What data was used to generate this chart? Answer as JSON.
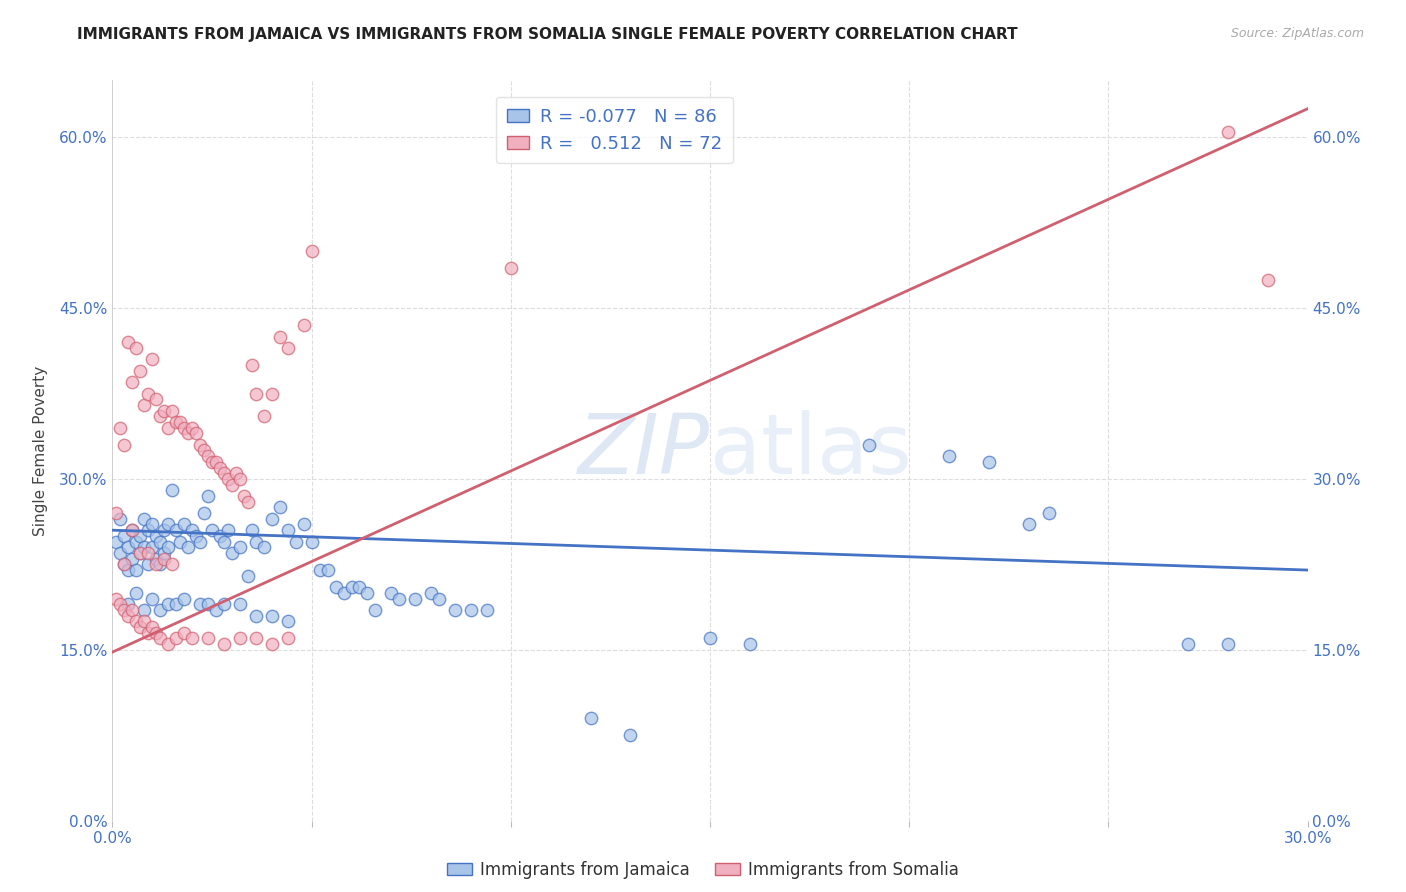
{
  "title": "IMMIGRANTS FROM JAMAICA VS IMMIGRANTS FROM SOMALIA SINGLE FEMALE POVERTY CORRELATION CHART",
  "source": "Source: ZipAtlas.com",
  "xlim": [
    0.0,
    0.3
  ],
  "ylim": [
    0.0,
    0.65
  ],
  "jamaica_color": "#a8c4e8",
  "somalia_color": "#f0b0c0",
  "jamaica_line_color": "#4472c4",
  "somalia_line_color": "#d06070",
  "jamaica_R": -0.077,
  "jamaica_N": 86,
  "somalia_R": 0.512,
  "somalia_N": 72,
  "watermark": "ZIPatlas",
  "jamaica_line": {
    "x0": 0.0,
    "y0": 0.255,
    "x1": 0.3,
    "y1": 0.22
  },
  "somalia_line": {
    "x0": 0.0,
    "y0": 0.148,
    "x1": 0.3,
    "y1": 0.625
  },
  "jamaica_scatter": [
    [
      0.001,
      0.245
    ],
    [
      0.002,
      0.235
    ],
    [
      0.002,
      0.265
    ],
    [
      0.003,
      0.25
    ],
    [
      0.003,
      0.225
    ],
    [
      0.004,
      0.24
    ],
    [
      0.004,
      0.22
    ],
    [
      0.005,
      0.255
    ],
    [
      0.005,
      0.23
    ],
    [
      0.006,
      0.245
    ],
    [
      0.006,
      0.22
    ],
    [
      0.007,
      0.25
    ],
    [
      0.007,
      0.235
    ],
    [
      0.008,
      0.265
    ],
    [
      0.008,
      0.24
    ],
    [
      0.009,
      0.255
    ],
    [
      0.009,
      0.225
    ],
    [
      0.01,
      0.26
    ],
    [
      0.01,
      0.24
    ],
    [
      0.011,
      0.25
    ],
    [
      0.011,
      0.23
    ],
    [
      0.012,
      0.245
    ],
    [
      0.012,
      0.225
    ],
    [
      0.013,
      0.255
    ],
    [
      0.013,
      0.235
    ],
    [
      0.014,
      0.26
    ],
    [
      0.014,
      0.24
    ],
    [
      0.015,
      0.29
    ],
    [
      0.016,
      0.255
    ],
    [
      0.017,
      0.245
    ],
    [
      0.018,
      0.26
    ],
    [
      0.019,
      0.24
    ],
    [
      0.02,
      0.255
    ],
    [
      0.021,
      0.25
    ],
    [
      0.022,
      0.245
    ],
    [
      0.023,
      0.27
    ],
    [
      0.024,
      0.285
    ],
    [
      0.025,
      0.255
    ],
    [
      0.027,
      0.25
    ],
    [
      0.028,
      0.245
    ],
    [
      0.029,
      0.255
    ],
    [
      0.03,
      0.235
    ],
    [
      0.032,
      0.24
    ],
    [
      0.034,
      0.215
    ],
    [
      0.035,
      0.255
    ],
    [
      0.036,
      0.245
    ],
    [
      0.038,
      0.24
    ],
    [
      0.04,
      0.265
    ],
    [
      0.042,
      0.275
    ],
    [
      0.044,
      0.255
    ],
    [
      0.046,
      0.245
    ],
    [
      0.048,
      0.26
    ],
    [
      0.05,
      0.245
    ],
    [
      0.052,
      0.22
    ],
    [
      0.054,
      0.22
    ],
    [
      0.056,
      0.205
    ],
    [
      0.058,
      0.2
    ],
    [
      0.06,
      0.205
    ],
    [
      0.062,
      0.205
    ],
    [
      0.064,
      0.2
    ],
    [
      0.066,
      0.185
    ],
    [
      0.07,
      0.2
    ],
    [
      0.072,
      0.195
    ],
    [
      0.076,
      0.195
    ],
    [
      0.08,
      0.2
    ],
    [
      0.082,
      0.195
    ],
    [
      0.086,
      0.185
    ],
    [
      0.09,
      0.185
    ],
    [
      0.094,
      0.185
    ],
    [
      0.004,
      0.19
    ],
    [
      0.006,
      0.2
    ],
    [
      0.008,
      0.185
    ],
    [
      0.01,
      0.195
    ],
    [
      0.012,
      0.185
    ],
    [
      0.014,
      0.19
    ],
    [
      0.016,
      0.19
    ],
    [
      0.018,
      0.195
    ],
    [
      0.022,
      0.19
    ],
    [
      0.024,
      0.19
    ],
    [
      0.026,
      0.185
    ],
    [
      0.028,
      0.19
    ],
    [
      0.032,
      0.19
    ],
    [
      0.036,
      0.18
    ],
    [
      0.04,
      0.18
    ],
    [
      0.044,
      0.175
    ],
    [
      0.12,
      0.09
    ],
    [
      0.13,
      0.075
    ],
    [
      0.15,
      0.16
    ],
    [
      0.16,
      0.155
    ],
    [
      0.19,
      0.33
    ],
    [
      0.21,
      0.32
    ],
    [
      0.22,
      0.315
    ],
    [
      0.23,
      0.26
    ],
    [
      0.235,
      0.27
    ],
    [
      0.27,
      0.155
    ],
    [
      0.28,
      0.155
    ]
  ],
  "somalia_scatter": [
    [
      0.001,
      0.27
    ],
    [
      0.002,
      0.345
    ],
    [
      0.003,
      0.33
    ],
    [
      0.004,
      0.42
    ],
    [
      0.005,
      0.385
    ],
    [
      0.006,
      0.415
    ],
    [
      0.007,
      0.395
    ],
    [
      0.008,
      0.365
    ],
    [
      0.009,
      0.375
    ],
    [
      0.01,
      0.405
    ],
    [
      0.011,
      0.37
    ],
    [
      0.012,
      0.355
    ],
    [
      0.013,
      0.36
    ],
    [
      0.014,
      0.345
    ],
    [
      0.015,
      0.36
    ],
    [
      0.016,
      0.35
    ],
    [
      0.017,
      0.35
    ],
    [
      0.018,
      0.345
    ],
    [
      0.019,
      0.34
    ],
    [
      0.02,
      0.345
    ],
    [
      0.021,
      0.34
    ],
    [
      0.022,
      0.33
    ],
    [
      0.023,
      0.325
    ],
    [
      0.024,
      0.32
    ],
    [
      0.025,
      0.315
    ],
    [
      0.026,
      0.315
    ],
    [
      0.027,
      0.31
    ],
    [
      0.028,
      0.305
    ],
    [
      0.029,
      0.3
    ],
    [
      0.03,
      0.295
    ],
    [
      0.031,
      0.305
    ],
    [
      0.032,
      0.3
    ],
    [
      0.033,
      0.285
    ],
    [
      0.034,
      0.28
    ],
    [
      0.035,
      0.4
    ],
    [
      0.036,
      0.375
    ],
    [
      0.038,
      0.355
    ],
    [
      0.04,
      0.375
    ],
    [
      0.042,
      0.425
    ],
    [
      0.044,
      0.415
    ],
    [
      0.048,
      0.435
    ],
    [
      0.05,
      0.5
    ],
    [
      0.001,
      0.195
    ],
    [
      0.002,
      0.19
    ],
    [
      0.003,
      0.185
    ],
    [
      0.004,
      0.18
    ],
    [
      0.005,
      0.185
    ],
    [
      0.006,
      0.175
    ],
    [
      0.007,
      0.17
    ],
    [
      0.008,
      0.175
    ],
    [
      0.009,
      0.165
    ],
    [
      0.01,
      0.17
    ],
    [
      0.011,
      0.165
    ],
    [
      0.012,
      0.16
    ],
    [
      0.014,
      0.155
    ],
    [
      0.016,
      0.16
    ],
    [
      0.018,
      0.165
    ],
    [
      0.02,
      0.16
    ],
    [
      0.024,
      0.16
    ],
    [
      0.028,
      0.155
    ],
    [
      0.032,
      0.16
    ],
    [
      0.036,
      0.16
    ],
    [
      0.04,
      0.155
    ],
    [
      0.044,
      0.16
    ],
    [
      0.003,
      0.225
    ],
    [
      0.005,
      0.255
    ],
    [
      0.007,
      0.235
    ],
    [
      0.009,
      0.235
    ],
    [
      0.011,
      0.225
    ],
    [
      0.013,
      0.23
    ],
    [
      0.015,
      0.225
    ],
    [
      0.1,
      0.485
    ],
    [
      0.28,
      0.605
    ],
    [
      0.29,
      0.475
    ]
  ]
}
